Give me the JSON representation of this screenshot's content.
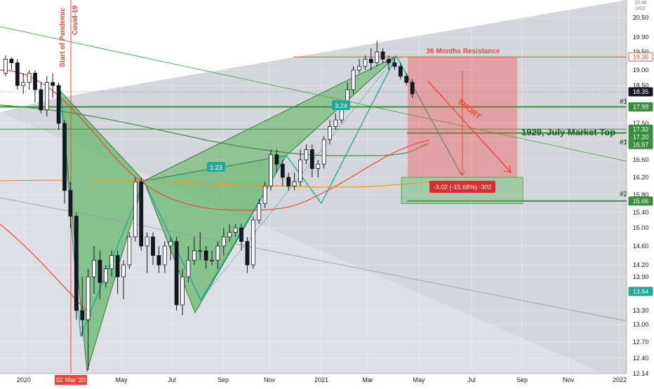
{
  "chart_data": {
    "type": "candlestick",
    "symbol_hint": "",
    "currency": "USD",
    "ylim": [
      12.14,
      20.96
    ],
    "y_ticks": [
      20.5,
      19.9,
      19.5,
      19.0,
      18.5,
      18.0,
      17.5,
      17.0,
      16.6,
      16.2,
      15.8,
      15.4,
      15.0,
      14.6,
      14.2,
      13.9,
      13.3,
      13.0,
      12.7,
      12.4,
      12.14
    ],
    "y_tick_labels": [
      "20.50",
      "19.90",
      "19.50",
      "19.00",
      "18.50",
      "18.00",
      "17.50",
      "17.00",
      "16.60",
      "16.20",
      "15.80",
      "15.40",
      "15.00",
      "14.60",
      "14.20",
      "13.90",
      "13.30",
      "13.00",
      "12.70",
      "12.40",
      "12.14"
    ],
    "top_label": "20.96",
    "x_ticks": [
      "2020",
      "May",
      "Jul",
      "Sep",
      "Nov",
      "2021",
      "Mar",
      "May",
      "Jul",
      "Sep",
      "Nov",
      "2022"
    ],
    "x_highlight": "02 Mar '20",
    "price_tags": [
      {
        "value": 19.36,
        "label": "19.36",
        "color": "#f44336",
        "text_color": "#f44336"
      },
      {
        "value": 18.35,
        "label": "18.35",
        "color": "#131722",
        "text_color": "#ffffff"
      },
      {
        "value": 17.99,
        "label": "17.99",
        "color": "#388e3c",
        "text_color": "#ffffff"
      },
      {
        "value": 17.32,
        "label": "17.32",
        "color": "#388e3c",
        "text_color": "#ffffff"
      },
      {
        "value": 17.2,
        "label": "17.20",
        "color": "#388e3c",
        "text_color": "#ffffff"
      },
      {
        "value": 16.97,
        "label": "16.97",
        "color": "#388e3c",
        "text_color": "#ffffff"
      },
      {
        "value": 15.66,
        "label": "15.66",
        "color": "#388e3c",
        "text_color": "#ffffff"
      },
      {
        "value": 13.64,
        "label": "13.64",
        "color": "#26a69a",
        "text_color": "#ffffff"
      }
    ],
    "annotations": {
      "resistance": "36 Months Resistance",
      "pandemic": "Start of Pandemic",
      "covid": "Covid-19",
      "short": "SHORT",
      "market_top": "1929, July Market Top",
      "level1a": "#1",
      "level1b": "#1",
      "level2": "#2",
      "ratio1": "1.23",
      "ratio2": "3.24",
      "target": "-3.02 (-15.68%) -302"
    },
    "candles": [
      [
        18.9,
        19.3,
        19.4,
        18.8
      ],
      [
        19.3,
        19.2,
        19.35,
        19.0
      ],
      [
        19.2,
        18.5,
        19.3,
        18.4
      ],
      [
        18.5,
        18.6,
        18.9,
        18.3
      ],
      [
        18.6,
        18.9,
        19.0,
        18.4
      ],
      [
        18.9,
        18.4,
        19.0,
        18.1
      ],
      [
        18.4,
        17.9,
        18.6,
        17.8
      ],
      [
        17.9,
        18.6,
        18.8,
        17.7
      ],
      [
        18.6,
        18.5,
        18.9,
        18.2
      ],
      [
        18.5,
        17.5,
        18.6,
        17.3
      ],
      [
        17.5,
        15.9,
        17.6,
        15.6
      ],
      [
        15.9,
        15.3,
        16.1,
        15.0
      ],
      [
        15.3,
        13.3,
        15.4,
        13.1
      ],
      [
        13.3,
        13.1,
        13.9,
        12.8
      ],
      [
        13.1,
        13.9,
        14.1,
        12.2
      ],
      [
        13.9,
        14.3,
        14.6,
        13.6
      ],
      [
        14.3,
        13.8,
        14.5,
        13.5
      ],
      [
        13.8,
        14.1,
        14.2,
        13.7
      ],
      [
        14.1,
        14.4,
        14.5,
        13.9
      ],
      [
        14.4,
        13.9,
        14.5,
        13.6
      ],
      [
        13.9,
        14.2,
        14.3,
        13.5
      ],
      [
        14.2,
        14.8,
        14.9,
        14.1
      ],
      [
        14.8,
        16.1,
        16.2,
        14.7
      ],
      [
        16.1,
        14.6,
        16.2,
        14.5
      ],
      [
        14.6,
        14.8,
        14.9,
        14.0
      ],
      [
        14.8,
        14.4,
        14.9,
        14.2
      ],
      [
        14.4,
        14.2,
        14.6,
        14.0
      ],
      [
        14.2,
        14.6,
        14.7,
        14.0
      ],
      [
        14.6,
        14.7,
        14.8,
        14.3
      ],
      [
        14.7,
        13.4,
        14.8,
        13.3
      ],
      [
        13.4,
        13.9,
        14.1,
        13.2
      ],
      [
        13.9,
        14.3,
        14.6,
        13.8
      ],
      [
        14.3,
        14.5,
        14.8,
        14.2
      ],
      [
        14.5,
        14.5,
        14.9,
        14.3
      ],
      [
        14.5,
        14.3,
        14.6,
        14.1
      ],
      [
        14.3,
        14.3,
        14.5,
        14.2
      ],
      [
        14.3,
        14.6,
        14.7,
        14.1
      ],
      [
        14.6,
        14.8,
        15.0,
        14.4
      ],
      [
        14.8,
        14.9,
        15.1,
        14.7
      ],
      [
        14.9,
        15.0,
        15.1,
        14.8
      ],
      [
        15.0,
        14.7,
        15.1,
        14.5
      ],
      [
        14.7,
        14.2,
        14.8,
        14.0
      ],
      [
        14.2,
        15.2,
        15.3,
        14.1
      ],
      [
        15.2,
        15.6,
        15.7,
        15.1
      ],
      [
        15.6,
        16.0,
        16.1,
        15.5
      ],
      [
        16.0,
        16.7,
        16.8,
        15.9
      ],
      [
        16.7,
        16.5,
        16.8,
        16.3
      ],
      [
        16.5,
        16.2,
        16.6,
        16.0
      ],
      [
        16.2,
        16.0,
        16.3,
        15.9
      ],
      [
        16.0,
        16.1,
        16.3,
        15.9
      ],
      [
        16.1,
        16.6,
        16.8,
        16.0
      ],
      [
        16.6,
        16.8,
        16.9,
        16.5
      ],
      [
        16.8,
        16.4,
        16.9,
        16.2
      ],
      [
        16.4,
        16.5,
        16.6,
        16.2
      ],
      [
        16.5,
        17.0,
        17.1,
        16.4
      ],
      [
        17.0,
        17.4,
        17.6,
        16.9
      ],
      [
        17.4,
        17.6,
        17.8,
        17.3
      ],
      [
        17.6,
        18.0,
        18.1,
        17.5
      ],
      [
        18.0,
        18.4,
        18.6,
        17.9
      ],
      [
        18.4,
        19.0,
        19.1,
        18.3
      ],
      [
        19.0,
        19.1,
        19.3,
        18.9
      ],
      [
        19.1,
        19.3,
        19.4,
        19.0
      ],
      [
        19.3,
        19.2,
        19.6,
        19.0
      ],
      [
        19.2,
        19.5,
        19.8,
        19.1
      ],
      [
        19.5,
        19.3,
        19.6,
        19.2
      ],
      [
        19.3,
        19.2,
        19.4,
        19.0
      ],
      [
        19.2,
        19.1,
        19.3,
        19.0
      ],
      [
        19.1,
        18.8,
        19.2,
        18.7
      ],
      [
        18.8,
        18.6,
        18.9,
        18.5
      ],
      [
        18.6,
        18.3,
        18.7,
        18.2
      ]
    ]
  }
}
